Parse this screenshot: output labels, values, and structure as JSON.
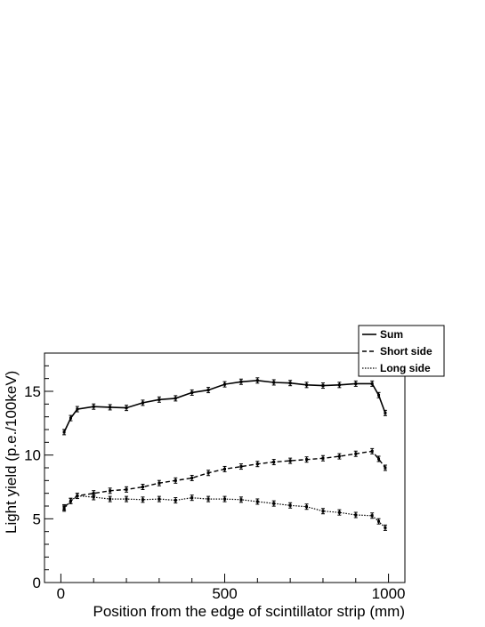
{
  "chart_data": {
    "type": "line",
    "xlabel": "Position from the edge of scintillator strip (mm)",
    "ylabel": "Light yield (p.e./100keV)",
    "xlim": [
      -50,
      1050
    ],
    "ylim": [
      0,
      18
    ],
    "x_ticks": [
      0,
      500,
      1000
    ],
    "y_ticks": [
      0,
      5,
      10,
      15
    ],
    "grid": false,
    "legend_position": "top-right",
    "series": [
      {
        "name": "Sum",
        "style": "solid",
        "x": [
          10,
          30,
          50,
          100,
          150,
          200,
          250,
          300,
          350,
          400,
          450,
          500,
          550,
          600,
          650,
          700,
          750,
          800,
          850,
          900,
          950,
          970,
          990
        ],
        "y": [
          11.8,
          12.9,
          13.6,
          13.8,
          13.75,
          13.7,
          14.1,
          14.35,
          14.45,
          14.9,
          15.1,
          15.55,
          15.75,
          15.85,
          15.7,
          15.65,
          15.5,
          15.45,
          15.5,
          15.6,
          15.6,
          14.7,
          13.3
        ]
      },
      {
        "name": "Short side",
        "style": "dashed",
        "x": [
          10,
          30,
          50,
          100,
          150,
          200,
          250,
          300,
          350,
          400,
          450,
          500,
          550,
          600,
          650,
          700,
          750,
          800,
          850,
          900,
          950,
          970,
          990
        ],
        "y": [
          5.9,
          6.4,
          6.8,
          7.0,
          7.2,
          7.3,
          7.5,
          7.8,
          8.0,
          8.2,
          8.6,
          8.9,
          9.1,
          9.3,
          9.45,
          9.55,
          9.65,
          9.75,
          9.9,
          10.1,
          10.3,
          9.7,
          9.0
        ]
      },
      {
        "name": "Long side",
        "style": "dotted",
        "x": [
          10,
          30,
          50,
          100,
          150,
          200,
          250,
          300,
          350,
          400,
          450,
          500,
          550,
          600,
          650,
          700,
          750,
          800,
          850,
          900,
          950,
          970,
          990
        ],
        "y": [
          5.8,
          6.4,
          6.8,
          6.7,
          6.55,
          6.55,
          6.5,
          6.55,
          6.45,
          6.65,
          6.55,
          6.55,
          6.5,
          6.35,
          6.2,
          6.05,
          5.95,
          5.6,
          5.5,
          5.3,
          5.25,
          4.8,
          4.3
        ]
      }
    ]
  }
}
